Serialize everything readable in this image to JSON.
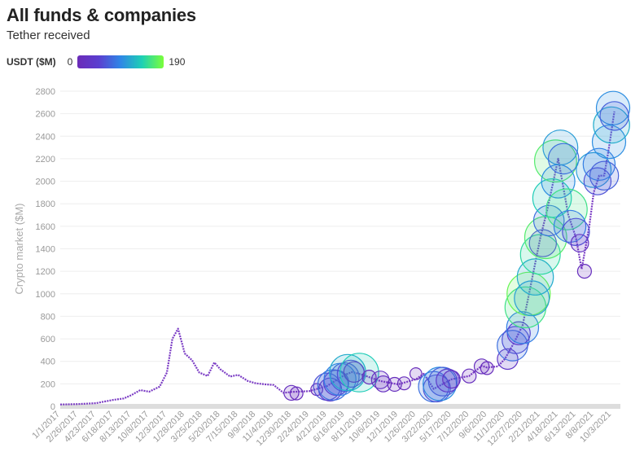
{
  "header": {
    "title": "All funds & companies",
    "subtitle": "Tether received"
  },
  "legend": {
    "title": "USDT ($M)",
    "min_label": "0",
    "max_label": "190",
    "colors": [
      "#6b2bb8",
      "#5a3fd0",
      "#2f86e6",
      "#1ed0b4",
      "#7bff3a"
    ]
  },
  "chart_data": {
    "type": "scatter",
    "title": "All funds & companies",
    "subtitle": "Tether received",
    "xlabel": "",
    "ylabel": "Crypto market ($M)",
    "ylim": [
      0,
      2800
    ],
    "yticks": [
      0,
      200,
      400,
      600,
      800,
      1000,
      1200,
      1400,
      1600,
      1800,
      2000,
      2200,
      2400,
      2600,
      2800
    ],
    "xlim": [
      "1/1/2017",
      "10/31/2021"
    ],
    "xticks": [
      "1/1/2017",
      "2/26/2017",
      "4/23/2017",
      "6/18/2017",
      "8/13/2017",
      "10/8/2017",
      "12/3/2017",
      "1/28/2018",
      "3/25/2018",
      "5/20/2018",
      "7/15/2018",
      "9/9/2018",
      "11/4/2018",
      "12/30/2018",
      "2/24/2019",
      "4/21/2019",
      "6/16/2019",
      "8/11/2019",
      "10/6/2019",
      "12/1/2019",
      "1/26/2020",
      "3/22/2020",
      "5/17/2020",
      "7/12/2020",
      "9/6/2020",
      "11/1/2020",
      "12/27/2020",
      "2/21/2021",
      "4/18/2021",
      "6/13/2021",
      "8/8/2021",
      "10/3/2021"
    ],
    "grid": true,
    "color_scale": {
      "label": "USDT ($M)",
      "min": 0,
      "max": 190
    },
    "market_series": [
      [
        "1/1/2017",
        17
      ],
      [
        "2/26/2017",
        20
      ],
      [
        "4/23/2017",
        28
      ],
      [
        "6/18/2017",
        58
      ],
      [
        "7/20/2017",
        70
      ],
      [
        "8/13/2017",
        100
      ],
      [
        "9/10/2017",
        145
      ],
      [
        "10/8/2017",
        130
      ],
      [
        "11/10/2017",
        175
      ],
      [
        "12/3/2017",
        300
      ],
      [
        "12/20/2017",
        600
      ],
      [
        "1/7/2018",
        690
      ],
      [
        "1/28/2018",
        470
      ],
      [
        "2/20/2018",
        410
      ],
      [
        "3/15/2018",
        300
      ],
      [
        "4/10/2018",
        270
      ],
      [
        "5/1/2018",
        390
      ],
      [
        "5/20/2018",
        330
      ],
      [
        "6/20/2018",
        265
      ],
      [
        "7/15/2018",
        280
      ],
      [
        "8/15/2018",
        225
      ],
      [
        "9/9/2018",
        205
      ],
      [
        "10/10/2018",
        195
      ],
      [
        "11/4/2018",
        190
      ],
      [
        "12/5/2018",
        120
      ],
      [
        "12/30/2018",
        128
      ],
      [
        "2/24/2019",
        135
      ],
      [
        "4/21/2019",
        180
      ],
      [
        "6/16/2019",
        280
      ],
      [
        "7/10/2019",
        305
      ],
      [
        "8/11/2019",
        280
      ],
      [
        "10/6/2019",
        225
      ],
      [
        "12/1/2019",
        195
      ],
      [
        "1/26/2020",
        240
      ],
      [
        "2/20/2020",
        290
      ],
      [
        "3/22/2020",
        155
      ],
      [
        "5/17/2020",
        240
      ],
      [
        "7/12/2020",
        270
      ],
      [
        "8/20/2020",
        360
      ],
      [
        "9/6/2020",
        345
      ],
      [
        "10/10/2020",
        355
      ],
      [
        "11/1/2020",
        420
      ],
      [
        "12/1/2020",
        570
      ],
      [
        "12/27/2020",
        720
      ],
      [
        "1/20/2021",
        1050
      ],
      [
        "2/21/2021",
        1500
      ],
      [
        "3/15/2021",
        1750
      ],
      [
        "4/18/2021",
        2200
      ],
      [
        "5/20/2021",
        1700
      ],
      [
        "6/13/2021",
        1500
      ],
      [
        "7/1/2021",
        1220
      ],
      [
        "7/25/2021",
        1600
      ],
      [
        "8/8/2021",
        1900
      ],
      [
        "8/25/2021",
        2050
      ],
      [
        "9/10/2021",
        2050
      ],
      [
        "9/25/2021",
        2300
      ],
      [
        "10/3/2021",
        2450
      ],
      [
        "10/12/2021",
        2620
      ]
    ],
    "bubbles": [
      [
        "12/30/2018",
        120,
        12
      ],
      [
        "1/15/2019",
        115,
        8
      ],
      [
        "3/20/2019",
        150,
        6
      ],
      [
        "4/21/2019",
        175,
        60
      ],
      [
        "5/1/2019",
        150,
        40
      ],
      [
        "5/10/2019",
        190,
        80
      ],
      [
        "5/20/2019",
        210,
        50
      ],
      [
        "6/1/2019",
        240,
        90
      ],
      [
        "6/16/2019",
        260,
        70
      ],
      [
        "6/25/2019",
        300,
        120
      ],
      [
        "7/5/2019",
        290,
        60
      ],
      [
        "7/15/2019",
        305,
        30
      ],
      [
        "8/1/2019",
        300,
        140
      ],
      [
        "9/1/2019",
        260,
        10
      ],
      [
        "10/6/2019",
        235,
        20
      ],
      [
        "10/15/2019",
        200,
        15
      ],
      [
        "11/20/2019",
        195,
        10
      ],
      [
        "12/20/2019",
        205,
        8
      ],
      [
        "1/26/2020",
        290,
        6
      ],
      [
        "3/22/2020",
        175,
        80
      ],
      [
        "4/1/2020",
        160,
        60
      ],
      [
        "4/10/2020",
        200,
        100
      ],
      [
        "4/20/2020",
        220,
        70
      ],
      [
        "5/5/2020",
        230,
        40
      ],
      [
        "5/17/2020",
        240,
        20
      ],
      [
        "7/12/2020",
        270,
        10
      ],
      [
        "8/20/2020",
        355,
        12
      ],
      [
        "9/6/2020",
        340,
        8
      ],
      [
        "11/10/2020",
        420,
        30
      ],
      [
        "11/25/2020",
        540,
        80
      ],
      [
        "12/5/2020",
        590,
        60
      ],
      [
        "12/15/2020",
        650,
        40
      ],
      [
        "12/27/2020",
        700,
        90
      ],
      [
        "1/5/2021",
        880,
        160
      ],
      [
        "1/15/2021",
        1000,
        180
      ],
      [
        "1/25/2021",
        960,
        110
      ],
      [
        "2/5/2021",
        1150,
        120
      ],
      [
        "2/21/2021",
        1350,
        150
      ],
      [
        "3/1/2021",
        1450,
        60
      ],
      [
        "3/10/2021",
        1500,
        170
      ],
      [
        "3/20/2021",
        1650,
        80
      ],
      [
        "3/30/2021",
        1850,
        140
      ],
      [
        "4/10/2021",
        2180,
        170
      ],
      [
        "4/18/2021",
        2000,
        100
      ],
      [
        "4/25/2021",
        2300,
        110
      ],
      [
        "5/5/2021",
        2200,
        80
      ],
      [
        "5/15/2021",
        1750,
        160
      ],
      [
        "5/25/2021",
        1600,
        90
      ],
      [
        "6/13/2021",
        1550,
        60
      ],
      [
        "6/25/2021",
        1450,
        20
      ],
      [
        "7/10/2021",
        1200,
        10
      ],
      [
        "8/8/2021",
        2100,
        110
      ],
      [
        "8/20/2021",
        2000,
        60
      ],
      [
        "8/25/2021",
        2150,
        90
      ],
      [
        "9/10/2021",
        2050,
        70
      ],
      [
        "9/25/2021",
        2350,
        100
      ],
      [
        "10/3/2021",
        2500,
        120
      ],
      [
        "10/8/2021",
        2650,
        100
      ],
      [
        "10/12/2021",
        2580,
        70
      ]
    ]
  }
}
